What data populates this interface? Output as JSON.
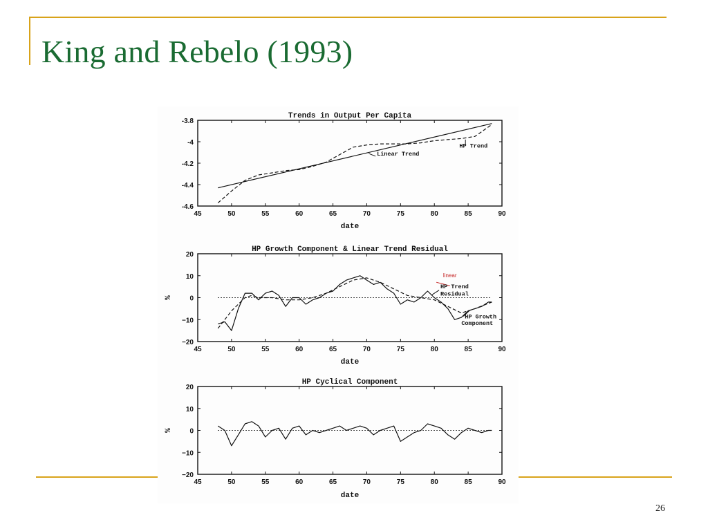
{
  "slide": {
    "title": "King and Rebelo (1993)",
    "page_number": "26",
    "accent_color": "#d8a31a",
    "title_color": "#1a6b32"
  },
  "chart_data": [
    {
      "type": "line",
      "title": "Trends in Output Per Capita",
      "xlabel": "date",
      "ylabel": "",
      "xlim": [
        45,
        90
      ],
      "ylim": [
        -4.6,
        -3.8
      ],
      "xticks": [
        45,
        50,
        55,
        60,
        65,
        70,
        75,
        80,
        85,
        90
      ],
      "yticks": [
        -3.8,
        -4,
        -4.2,
        -4.4,
        -4.6
      ],
      "ytick_labels": [
        "-3.8",
        "-4",
        "-4.2",
        "-4.4",
        "-4.6"
      ],
      "series": [
        {
          "name": "Linear Trend",
          "style": "solid",
          "points": [
            [
              48,
              -4.43
            ],
            [
              88.5,
              -3.83
            ]
          ]
        },
        {
          "name": "HP Trend",
          "style": "dashed",
          "points": [
            [
              48,
              -4.57
            ],
            [
              50,
              -4.46
            ],
            [
              52,
              -4.36
            ],
            [
              54,
              -4.31
            ],
            [
              56,
              -4.29
            ],
            [
              58,
              -4.27
            ],
            [
              60,
              -4.26
            ],
            [
              62,
              -4.23
            ],
            [
              64,
              -4.19
            ],
            [
              66,
              -4.12
            ],
            [
              68,
              -4.05
            ],
            [
              70,
              -4.03
            ],
            [
              72,
              -4.02
            ],
            [
              74,
              -4.02
            ],
            [
              76,
              -4.02
            ],
            [
              78,
              -4.01
            ],
            [
              80,
              -3.99
            ],
            [
              82,
              -3.98
            ],
            [
              84,
              -3.97
            ],
            [
              86,
              -3.95
            ],
            [
              88.5,
              -3.84
            ]
          ]
        }
      ],
      "annotations": [
        "Linear Trend",
        "HP Trend"
      ]
    },
    {
      "type": "line",
      "title": "HP Growth Component & Linear Trend Residual",
      "xlabel": "date",
      "ylabel": "%",
      "xlim": [
        45,
        90
      ],
      "ylim": [
        -20,
        20
      ],
      "xticks": [
        45,
        50,
        55,
        60,
        65,
        70,
        75,
        80,
        85,
        90
      ],
      "yticks": [
        20,
        10,
        0,
        -10,
        -20
      ],
      "ytick_labels": [
        "20",
        "10",
        "0",
        "−10",
        "−20"
      ],
      "series": [
        {
          "name": "Linear Trend Residual",
          "style": "solid",
          "points": [
            [
              48,
              -12
            ],
            [
              49,
              -11
            ],
            [
              50,
              -15
            ],
            [
              51,
              -5
            ],
            [
              52,
              2
            ],
            [
              53,
              2
            ],
            [
              54,
              -1
            ],
            [
              55,
              2
            ],
            [
              56,
              3
            ],
            [
              57,
              1
            ],
            [
              58,
              -4
            ],
            [
              59,
              0
            ],
            [
              60,
              0
            ],
            [
              61,
              -3
            ],
            [
              62,
              -1
            ],
            [
              63,
              0
            ],
            [
              64,
              2
            ],
            [
              65,
              3
            ],
            [
              66,
              6
            ],
            [
              67,
              8
            ],
            [
              68,
              9
            ],
            [
              69,
              10
            ],
            [
              70,
              8
            ],
            [
              71,
              6
            ],
            [
              72,
              7
            ],
            [
              73,
              4
            ],
            [
              74,
              2
            ],
            [
              75,
              -3
            ],
            [
              76,
              -1
            ],
            [
              77,
              -2
            ],
            [
              78,
              0
            ],
            [
              79,
              3
            ],
            [
              80,
              0
            ],
            [
              81,
              -2
            ],
            [
              82,
              -5
            ],
            [
              83,
              -10
            ],
            [
              84,
              -9
            ],
            [
              85,
              -6
            ],
            [
              86,
              -5
            ],
            [
              87,
              -4
            ],
            [
              88,
              -2
            ],
            [
              88.5,
              -2
            ]
          ]
        },
        {
          "name": "HP Growth Component",
          "style": "dashed",
          "points": [
            [
              48,
              -14
            ],
            [
              49,
              -10
            ],
            [
              50,
              -6
            ],
            [
              51,
              -3
            ],
            [
              52,
              0
            ],
            [
              53,
              1
            ],
            [
              54,
              0
            ],
            [
              56,
              0
            ],
            [
              58,
              -1
            ],
            [
              60,
              -1
            ],
            [
              62,
              0
            ],
            [
              64,
              2
            ],
            [
              66,
              5
            ],
            [
              68,
              8
            ],
            [
              70,
              9
            ],
            [
              72,
              7
            ],
            [
              74,
              4
            ],
            [
              76,
              1
            ],
            [
              78,
              0
            ],
            [
              80,
              -1
            ],
            [
              82,
              -4
            ],
            [
              84,
              -7
            ],
            [
              86,
              -5
            ],
            [
              88.5,
              -2
            ]
          ]
        },
        {
          "name": "zero",
          "style": "dotted",
          "points": [
            [
              48,
              0
            ],
            [
              88.5,
              0
            ]
          ]
        }
      ],
      "annotations": [
        "linear",
        "HP Trend",
        "Residual",
        "HP Growth",
        "Component"
      ]
    },
    {
      "type": "line",
      "title": "HP Cyclical Component",
      "xlabel": "date",
      "ylabel": "%",
      "xlim": [
        45,
        90
      ],
      "ylim": [
        -20,
        20
      ],
      "xticks": [
        45,
        50,
        55,
        60,
        65,
        70,
        75,
        80,
        85,
        90
      ],
      "yticks": [
        20,
        10,
        0,
        -10,
        -20
      ],
      "ytick_labels": [
        "20",
        "10",
        "0",
        "−10",
        "−20"
      ],
      "series": [
        {
          "name": "HP Cyclical Component",
          "style": "solid",
          "points": [
            [
              48,
              2
            ],
            [
              49,
              0
            ],
            [
              50,
              -7
            ],
            [
              51,
              -2
            ],
            [
              52,
              3
            ],
            [
              53,
              4
            ],
            [
              54,
              2
            ],
            [
              55,
              -3
            ],
            [
              56,
              0
            ],
            [
              57,
              1
            ],
            [
              58,
              -4
            ],
            [
              59,
              1
            ],
            [
              60,
              2
            ],
            [
              61,
              -2
            ],
            [
              62,
              0
            ],
            [
              63,
              -1
            ],
            [
              64,
              0
            ],
            [
              65,
              1
            ],
            [
              66,
              2
            ],
            [
              67,
              0
            ],
            [
              68,
              1
            ],
            [
              69,
              2
            ],
            [
              70,
              1
            ],
            [
              71,
              -2
            ],
            [
              72,
              0
            ],
            [
              73,
              1
            ],
            [
              74,
              2
            ],
            [
              75,
              -5
            ],
            [
              76,
              -3
            ],
            [
              77,
              -1
            ],
            [
              78,
              0
            ],
            [
              79,
              3
            ],
            [
              80,
              2
            ],
            [
              81,
              1
            ],
            [
              82,
              -2
            ],
            [
              83,
              -4
            ],
            [
              84,
              -1
            ],
            [
              85,
              1
            ],
            [
              86,
              0
            ],
            [
              87,
              -1
            ],
            [
              88,
              0
            ],
            [
              88.5,
              0
            ]
          ]
        },
        {
          "name": "zero",
          "style": "dotted",
          "points": [
            [
              48,
              0
            ],
            [
              88.5,
              0
            ]
          ]
        }
      ],
      "annotations": []
    }
  ]
}
